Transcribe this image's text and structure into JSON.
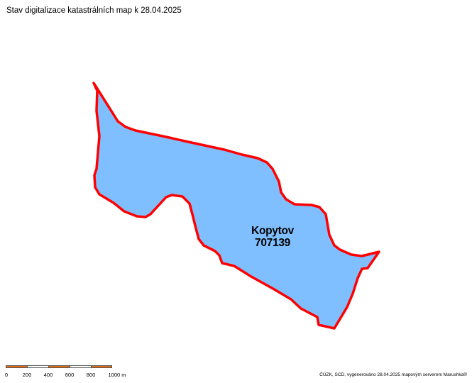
{
  "title": "Stav digitalizace katastrálních map k 28.04.2025",
  "parcel": {
    "name": "Kopytov",
    "code": "707139",
    "fill_color": "#80BFFF",
    "border_color": "#FF0000"
  },
  "scale_bar": {
    "labels": [
      "0",
      "200",
      "400",
      "600",
      "800",
      "1000 m"
    ],
    "colors": [
      "#E06A10",
      "#FFFFFF"
    ]
  },
  "attribution": "ČÚZK, SCD, vygenerováno 28.04.2025 mapovým serverem Marushka®"
}
